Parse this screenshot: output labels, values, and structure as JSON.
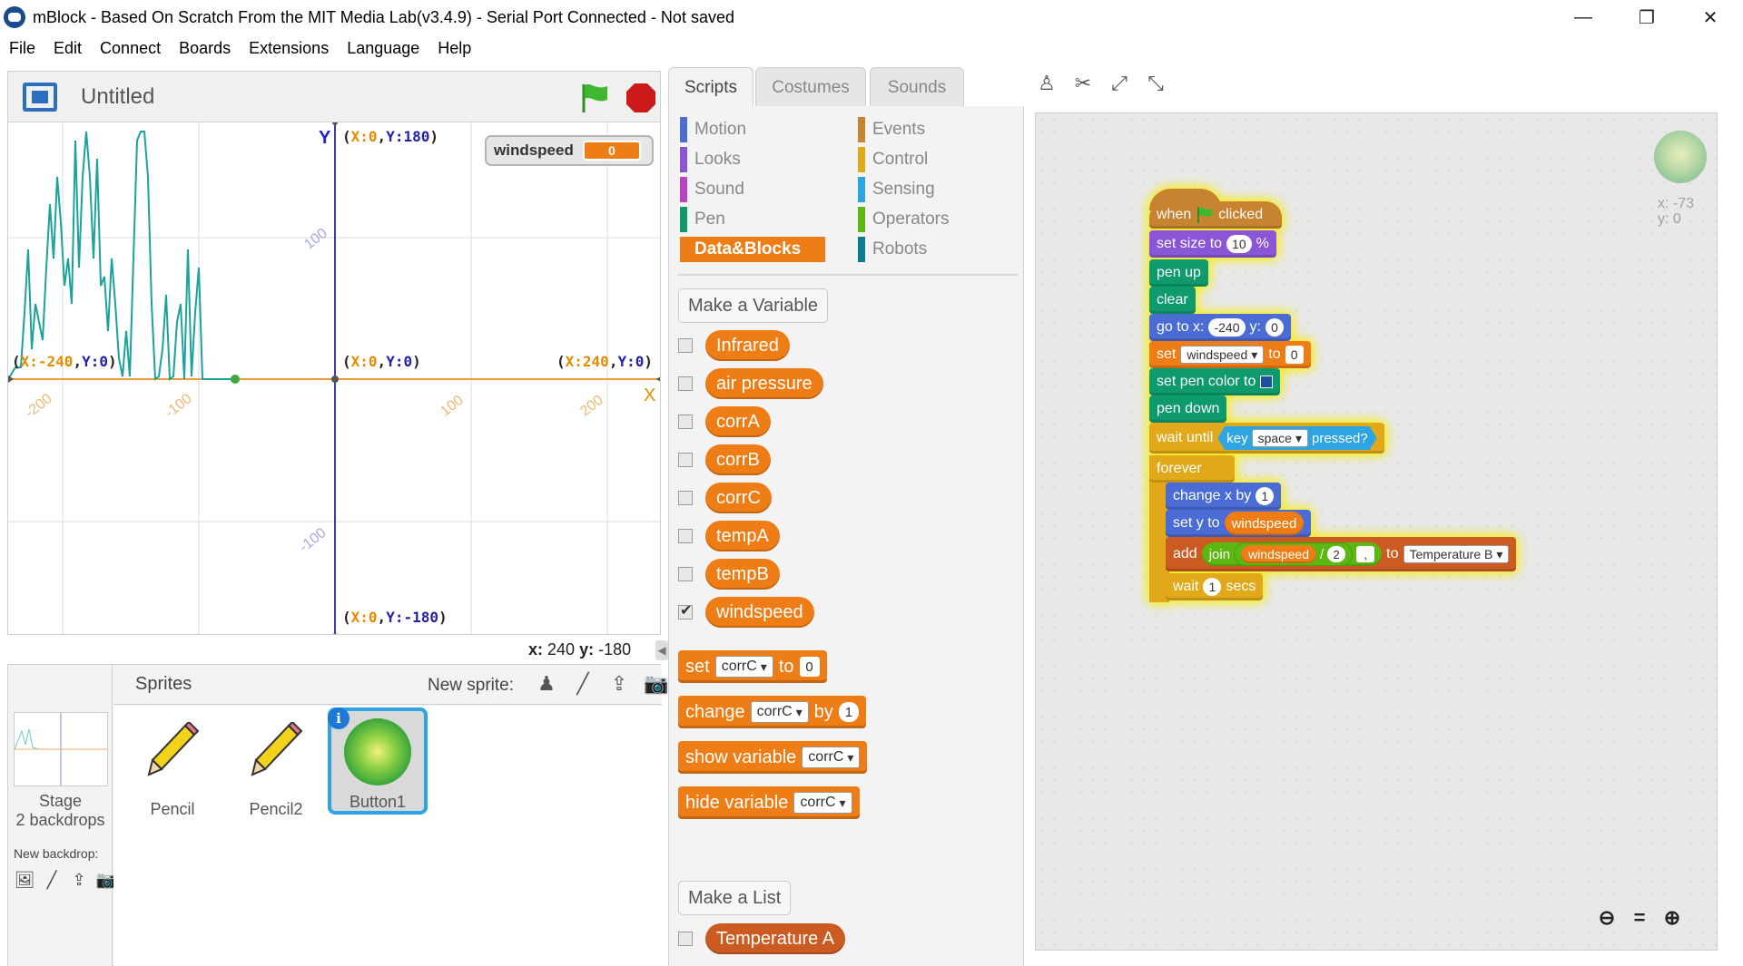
{
  "window": {
    "title": "mBlock - Based On Scratch From the MIT Media Lab(v3.4.9) - Serial Port Connected - Not saved",
    "controls": {
      "minimize": "—",
      "maximize": "❐",
      "close": "✕"
    }
  },
  "menu": [
    "File",
    "Edit",
    "Connect",
    "Boards",
    "Extensions",
    "Language",
    "Help"
  ],
  "stage": {
    "project_title": "Untitled",
    "monitor": {
      "name": "windspeed",
      "value": "0"
    },
    "axis_labels": {
      "y": "Y",
      "x": "X"
    },
    "ticks": [
      "100",
      "100",
      "-200",
      "-100",
      "100",
      "200",
      "-100"
    ],
    "coords": {
      "top": {
        "x": "0",
        "y": "180"
      },
      "bottom": {
        "x": "0",
        "y": "-180"
      },
      "left": {
        "x": "-240",
        "y": "0"
      },
      "center": {
        "x": "0",
        "y": "0"
      },
      "right": {
        "x": "240",
        "y": "0"
      }
    },
    "mouse_xy": {
      "x_label": "x:",
      "x": "240",
      "y_label": "y:",
      "y": "-180"
    }
  },
  "sprites_panel": {
    "title": "Sprites",
    "new_sprite_label": "New sprite:",
    "stage_label": "Stage",
    "backdrops": "2 backdrops",
    "new_backdrop_label": "New backdrop:",
    "sprites": [
      {
        "name": "Pencil",
        "icon": "pencil-icon"
      },
      {
        "name": "Pencil2",
        "icon": "pencil-icon"
      },
      {
        "name": "Button1",
        "icon": "button-sprite",
        "selected": true
      }
    ]
  },
  "tabs": [
    "Scripts",
    "Costumes",
    "Sounds"
  ],
  "categories": [
    {
      "label": "Motion",
      "color": "#4a6cd4"
    },
    {
      "label": "Events",
      "color": "#c88330"
    },
    {
      "label": "Looks",
      "color": "#8a55d7"
    },
    {
      "label": "Control",
      "color": "#e1a91a"
    },
    {
      "label": "Sound",
      "color": "#bb42c3"
    },
    {
      "label": "Sensing",
      "color": "#2ca5e2"
    },
    {
      "label": "Pen",
      "color": "#0e9a6c"
    },
    {
      "label": "Operators",
      "color": "#5cb712"
    },
    {
      "label": "Data&Blocks",
      "color": "#ee7d16"
    },
    {
      "label": "Robots",
      "color": "#0d7b93"
    }
  ],
  "palette": {
    "make_variable": "Make a Variable",
    "variables": [
      {
        "name": "Infrared",
        "checked": false
      },
      {
        "name": "air pressure",
        "checked": false
      },
      {
        "name": "corrA",
        "checked": false
      },
      {
        "name": "corrB",
        "checked": false
      },
      {
        "name": "corrC",
        "checked": false
      },
      {
        "name": "tempA",
        "checked": false
      },
      {
        "name": "tempB",
        "checked": false
      },
      {
        "name": "windspeed",
        "checked": true
      }
    ],
    "set_block": {
      "word1": "set",
      "var": "corrC",
      "word2": "to",
      "value": "0"
    },
    "change_block": {
      "word1": "change",
      "var": "corrC",
      "word2": "by",
      "value": "1"
    },
    "show_block": {
      "word": "show variable",
      "var": "corrC"
    },
    "hide_block": {
      "word": "hide variable",
      "var": "corrC"
    },
    "make_list": "Make a List",
    "lists": [
      {
        "name": "Temperature A",
        "checked": false
      }
    ]
  },
  "script": {
    "hat": {
      "w1": "when",
      "w2": "clicked"
    },
    "set_size": {
      "w1": "set size to",
      "value": "10",
      "w2": "%"
    },
    "pen_up": "pen up",
    "clear": "clear",
    "goto": {
      "w1": "go to x:",
      "x": "-240",
      "w2": "y:",
      "y": "0"
    },
    "set_var": {
      "w1": "set",
      "var": "windspeed",
      "w2": "to",
      "value": "0"
    },
    "set_pen_color": {
      "w1": "set pen color to",
      "color": "#1b4fa0"
    },
    "pen_down": "pen down",
    "wait_until": {
      "w1": "wait until",
      "key_w": "key",
      "key": "space",
      "w2": "pressed?"
    },
    "forever": "forever",
    "change_x": {
      "w1": "change x by",
      "value": "1"
    },
    "set_y": {
      "w1": "set y to",
      "var": "windspeed"
    },
    "add": {
      "w1": "add",
      "join": "join",
      "var": "windspeed",
      "op": "/",
      "value": "2",
      "value2": ",",
      "w2": "to",
      "list": "Temperature B"
    },
    "wait": {
      "w1": "wait",
      "value": "1",
      "w2": "secs"
    }
  },
  "sprite_info": {
    "x_label": "x:",
    "x": "-73",
    "y_label": "y:",
    "y": "0"
  },
  "zoom": {
    "out": "🔍−",
    "reset": "=",
    "in": "🔍+"
  },
  "colors": {
    "orange": "#ee7d16",
    "stage_axis": "#3b3bb0",
    "graph_line": "#1aa39a",
    "hat_glow": "#f3ea32"
  }
}
